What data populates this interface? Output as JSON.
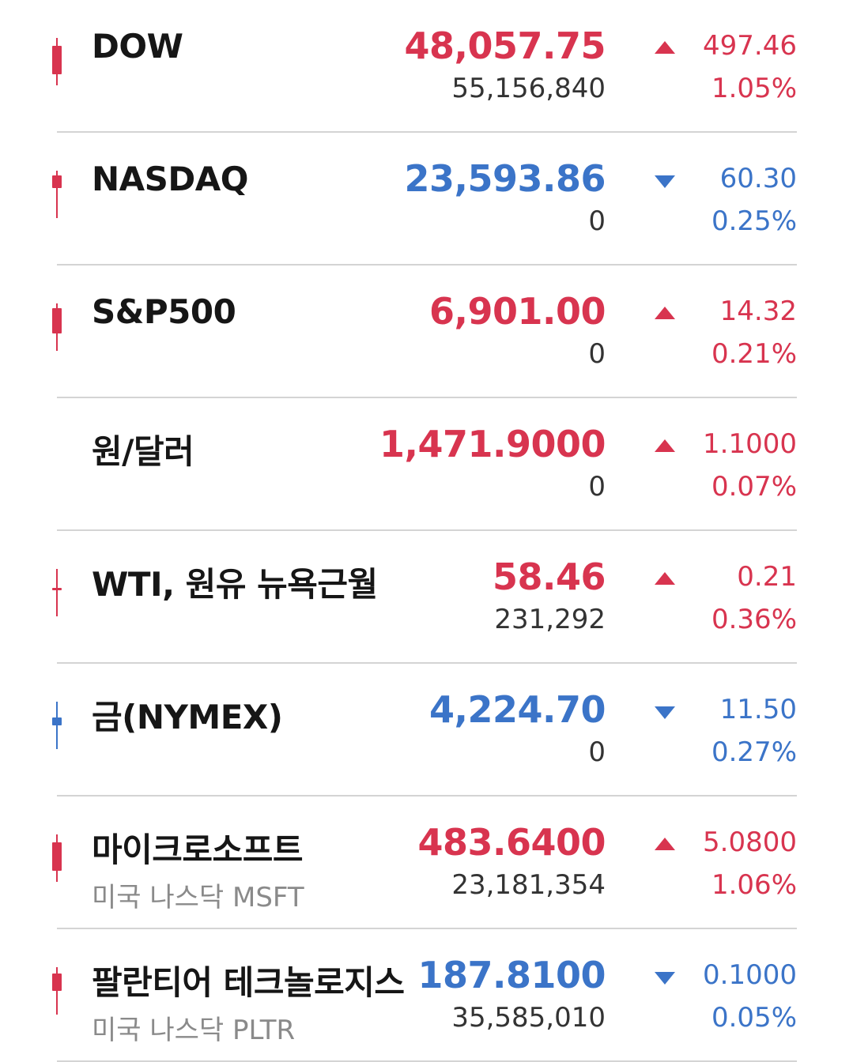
{
  "colors": {
    "up": "#d8344f",
    "down": "#3b74c8",
    "divider": "#d4d4d4",
    "name": "#161616",
    "sub": "#8a8a8a"
  },
  "rows": [
    {
      "name": "DOW",
      "sub": "",
      "price": "48,057.75",
      "volume": "55,156,840",
      "direction": "up",
      "change": "497.46",
      "pct": "1.05%",
      "candle": {
        "color": "up",
        "icon": "candle-up-icon"
      }
    },
    {
      "name": "NASDAQ",
      "sub": "",
      "price": "23,593.86",
      "volume": "0",
      "direction": "down",
      "change": "60.30",
      "pct": "0.25%",
      "candle": {
        "color": "up",
        "icon": "candle-up-icon"
      }
    },
    {
      "name": "S&P500",
      "sub": "",
      "price": "6,901.00",
      "volume": "0",
      "direction": "up",
      "change": "14.32",
      "pct": "0.21%",
      "candle": {
        "color": "up",
        "icon": "candle-up-icon"
      }
    },
    {
      "name": "원/달러",
      "sub": "",
      "price": "1,471.9000",
      "volume": "0",
      "direction": "up",
      "change": "1.1000",
      "pct": "0.07%",
      "candle": null
    },
    {
      "name": "WTI, 원유 뉴욕근월",
      "sub": "",
      "price": "58.46",
      "volume": "231,292",
      "direction": "up",
      "change": "0.21",
      "pct": "0.36%",
      "candle": {
        "color": "up",
        "icon": "candle-up-icon"
      }
    },
    {
      "name": "금(NYMEX)",
      "sub": "",
      "price": "4,224.70",
      "volume": "0",
      "direction": "down",
      "change": "11.50",
      "pct": "0.27%",
      "candle": {
        "color": "down",
        "icon": "candle-down-icon"
      }
    },
    {
      "name": "마이크로소프트",
      "sub": "미국 나스닥 MSFT",
      "price": "483.6400",
      "volume": "23,181,354",
      "direction": "up",
      "change": "5.0800",
      "pct": "1.06%",
      "candle": {
        "color": "up",
        "icon": "candle-up-icon"
      }
    },
    {
      "name": "팔란티어 테크놀로지스",
      "sub": "미국 나스닥 PLTR",
      "price": "187.8100",
      "volume": "35,585,010",
      "direction": "down",
      "change": "0.1000",
      "pct": "0.05%",
      "candle": {
        "color": "up",
        "icon": "candle-up-icon"
      }
    }
  ]
}
